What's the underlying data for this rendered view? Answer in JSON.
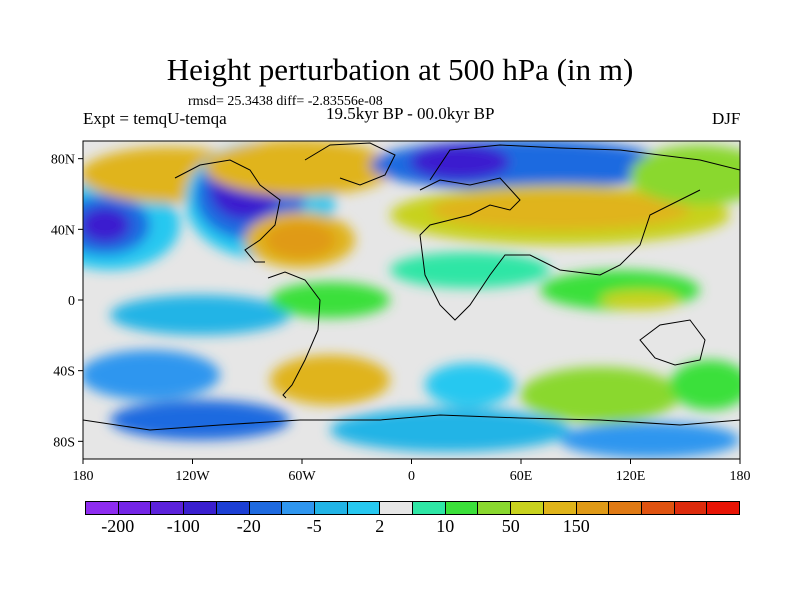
{
  "title": "Height perturbation at 500 hPa (in m)",
  "stats": "rmsd= 25.3438 diff= -2.83556e-08",
  "experiment": "Expt = temqU-temqa",
  "period": "19.5kyr BP - 00.0kyr BP",
  "season": "DJF",
  "lat_labels": [
    "80N",
    "40N",
    "0",
    "40S",
    "80S"
  ],
  "lon_labels": [
    "180",
    "120W",
    "60W",
    "0",
    "60E",
    "120E",
    "180"
  ],
  "colorbar": {
    "colors": [
      "#8e2cf0",
      "#7425e6",
      "#5c22db",
      "#3a1fcf",
      "#1c3fd4",
      "#1e6ae0",
      "#2f96ef",
      "#21b4e6",
      "#27c8f0",
      "#e6e6e6",
      "#2ee6a5",
      "#3be03a",
      "#8ad82f",
      "#c8d21e",
      "#e0b41a",
      "#e09a17",
      "#e07a14",
      "#e05310",
      "#dd2b0c",
      "#e81405"
    ],
    "labels": [
      "-200",
      "-100",
      "-20",
      "-5",
      "2",
      "10",
      "50",
      "150"
    ]
  }
}
